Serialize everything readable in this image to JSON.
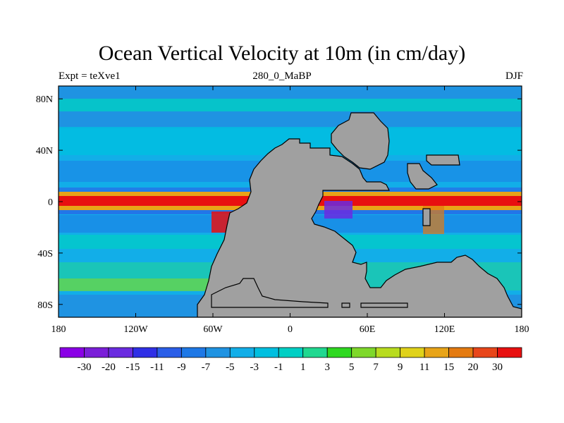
{
  "chart_data": {
    "type": "heatmap",
    "title": "Ocean Vertical Velocity at 10m (in cm/day)",
    "left_label": "Expt = teXve1",
    "center_label": "280_0_MaBP",
    "right_label": "DJF",
    "x_ticks": [
      "180",
      "120W",
      "60W",
      "0",
      "60E",
      "120E",
      "180"
    ],
    "y_ticks": [
      "80N",
      "40N",
      "0",
      "40S",
      "80S"
    ],
    "xlim": [
      -180,
      180
    ],
    "ylim": [
      -90,
      90
    ],
    "land_color": "#a0a0a0",
    "colorbar": {
      "levels": [
        "-30",
        "-20",
        "-15",
        "-11",
        "-9",
        "-7",
        "-5",
        "-3",
        "-1",
        "1",
        "3",
        "5",
        "7",
        "9",
        "11",
        "15",
        "20",
        "30"
      ],
      "colors": [
        "#8a00e6",
        "#7a1ed8",
        "#6a2be0",
        "#2f2fe6",
        "#2a5ee8",
        "#1e78e6",
        "#1f93e2",
        "#12aee8",
        "#00bfe0",
        "#00cfc4",
        "#20d890",
        "#2ed820",
        "#7ed82a",
        "#b8dc1e",
        "#e0d21a",
        "#e8a418",
        "#e47a10",
        "#e8461a",
        "#e81010"
      ]
    }
  }
}
